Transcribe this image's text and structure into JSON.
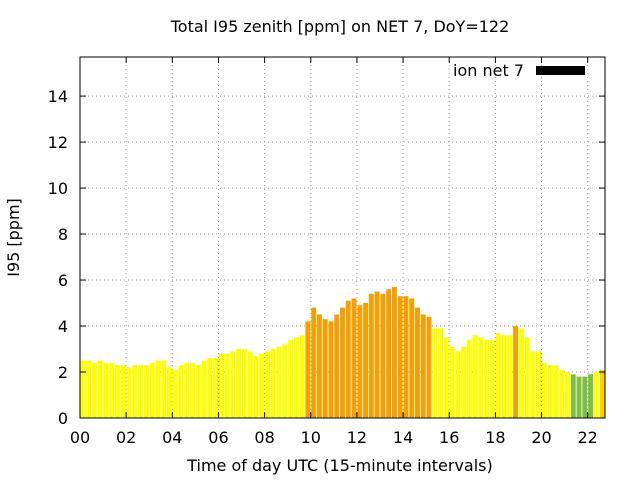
{
  "chart_data": {
    "type": "bar",
    "title": "Total I95 zenith [ppm] on NET 7, DoY=122",
    "xlabel": "Time of day UTC (15-minute intervals)",
    "ylabel": "I95 [ppm]",
    "xlim": [
      0,
      22.75
    ],
    "ylim": [
      0,
      15.7
    ],
    "xticks": [
      "00",
      "02",
      "04",
      "06",
      "08",
      "10",
      "12",
      "14",
      "16",
      "18",
      "20",
      "22"
    ],
    "yticks": [
      "0",
      "2",
      "4",
      "6",
      "8",
      "10",
      "12",
      "14"
    ],
    "grid": true,
    "legend": {
      "label": "ion net 7",
      "color": "#000000",
      "placement": "top-right"
    },
    "bar_interval_hours": 0.25,
    "colors": {
      "green": "#7fbf3f",
      "yellow": "#ffff00",
      "orange": "#f5a000",
      "gold": "#ffd000"
    },
    "series": [
      {
        "name": "ion net 7",
        "x": [
          0.0,
          0.25,
          0.5,
          0.75,
          1.0,
          1.25,
          1.5,
          1.75,
          2.0,
          2.25,
          2.5,
          2.75,
          3.0,
          3.25,
          3.5,
          3.75,
          4.0,
          4.25,
          4.5,
          4.75,
          5.0,
          5.25,
          5.5,
          5.75,
          6.0,
          6.25,
          6.5,
          6.75,
          7.0,
          7.25,
          7.5,
          7.75,
          8.0,
          8.25,
          8.5,
          8.75,
          9.0,
          9.25,
          9.5,
          9.75,
          10.0,
          10.25,
          10.5,
          10.75,
          11.0,
          11.25,
          11.5,
          11.75,
          12.0,
          12.25,
          12.5,
          12.75,
          13.0,
          13.25,
          13.5,
          13.75,
          14.0,
          14.25,
          14.5,
          14.75,
          15.0,
          15.25,
          15.5,
          15.75,
          16.0,
          16.25,
          16.5,
          16.75,
          17.0,
          17.25,
          17.5,
          17.75,
          18.0,
          18.25,
          18.5,
          18.75,
          19.0,
          19.25,
          19.5,
          19.75,
          20.0,
          20.25,
          20.5,
          20.75,
          21.0,
          21.25,
          21.5,
          21.75,
          22.0,
          22.25,
          22.5
        ],
        "values": [
          2.5,
          2.5,
          2.4,
          2.5,
          2.4,
          2.4,
          2.3,
          2.3,
          2.2,
          2.3,
          2.3,
          2.3,
          2.4,
          2.5,
          2.5,
          2.2,
          2.1,
          2.3,
          2.4,
          2.4,
          2.3,
          2.5,
          2.6,
          2.6,
          2.8,
          2.8,
          2.9,
          3.0,
          3.0,
          2.9,
          2.7,
          2.8,
          2.9,
          3.0,
          3.1,
          3.2,
          3.4,
          3.5,
          3.6,
          4.2,
          4.8,
          4.5,
          4.3,
          4.2,
          4.5,
          4.8,
          5.1,
          5.2,
          4.9,
          5.0,
          5.4,
          5.5,
          5.4,
          5.6,
          5.7,
          5.3,
          5.3,
          5.2,
          4.8,
          4.5,
          4.4,
          3.9,
          3.9,
          3.5,
          3.1,
          2.9,
          3.1,
          3.4,
          3.6,
          3.5,
          3.4,
          3.4,
          3.7,
          3.6,
          3.6,
          4.0,
          3.9,
          3.5,
          2.9,
          2.9,
          2.4,
          2.3,
          2.3,
          2.1,
          2.0,
          1.9,
          1.8,
          1.8,
          1.9,
          2.0,
          2.1
        ],
        "colors": [
          "yellow",
          "yellow",
          "yellow",
          "yellow",
          "yellow",
          "yellow",
          "yellow",
          "yellow",
          "yellow",
          "yellow",
          "yellow",
          "yellow",
          "yellow",
          "yellow",
          "yellow",
          "yellow",
          "yellow",
          "yellow",
          "yellow",
          "yellow",
          "yellow",
          "yellow",
          "yellow",
          "yellow",
          "yellow",
          "yellow",
          "yellow",
          "yellow",
          "yellow",
          "yellow",
          "yellow",
          "yellow",
          "yellow",
          "yellow",
          "yellow",
          "yellow",
          "yellow",
          "yellow",
          "yellow",
          "orange",
          "orange",
          "orange",
          "orange",
          "orange",
          "orange",
          "orange",
          "orange",
          "orange",
          "orange",
          "orange",
          "orange",
          "orange",
          "orange",
          "orange",
          "orange",
          "orange",
          "orange",
          "orange",
          "orange",
          "orange",
          "orange",
          "yellow",
          "yellow",
          "yellow",
          "yellow",
          "yellow",
          "yellow",
          "yellow",
          "yellow",
          "yellow",
          "yellow",
          "yellow",
          "yellow",
          "yellow",
          "yellow",
          "orange",
          "yellow",
          "yellow",
          "yellow",
          "yellow",
          "yellow",
          "yellow",
          "yellow",
          "yellow",
          "yellow",
          "green",
          "green",
          "green",
          "green",
          "yellow",
          "gold"
        ]
      }
    ]
  }
}
